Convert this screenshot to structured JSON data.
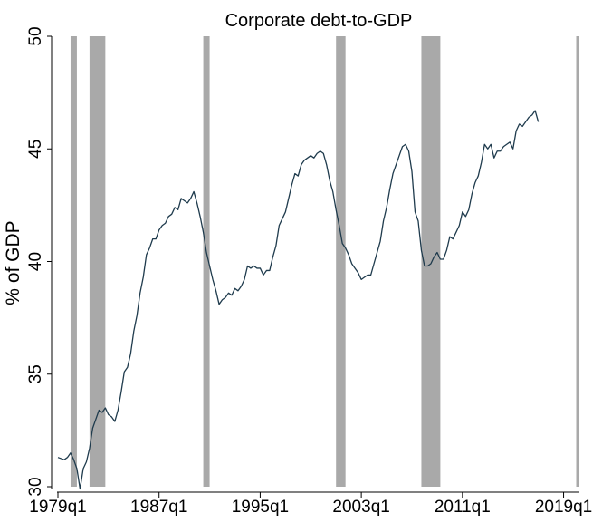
{
  "chart_data": {
    "type": "line",
    "title": "Corporate debt-to-GDP",
    "xlabel": "",
    "ylabel": "% of GDP",
    "ylim": [
      30,
      50
    ],
    "yticks": [
      30,
      35,
      40,
      45,
      50
    ],
    "xlim": [
      "1979q1",
      "2020q2"
    ],
    "xticks": [
      "1979q1",
      "1987q1",
      "1995q1",
      "2003q1",
      "2011q1",
      "2019q1"
    ],
    "grid": false,
    "legend": "none",
    "line_color": "#1f3b4d",
    "recession_color": "#a9a9a9",
    "recession_shading": [
      {
        "start": "1980q1",
        "end": "1980q3"
      },
      {
        "start": "1981q3",
        "end": "1982q4"
      },
      {
        "start": "1990q3",
        "end": "1991q1"
      },
      {
        "start": "2001q1",
        "end": "2001q4"
      },
      {
        "start": "2007q4",
        "end": "2009q2"
      },
      {
        "start": "2020q1",
        "end": "2020q2"
      }
    ],
    "series": [
      {
        "points": [
          [
            "1979q1",
            31.3
          ],
          [
            "1979q3",
            31.2
          ],
          [
            "1979q4",
            31.3
          ],
          [
            "1980q1",
            31.5
          ],
          [
            "1980q2",
            31.2
          ],
          [
            "1980q3",
            30.8
          ],
          [
            "1980q4",
            29.9
          ],
          [
            "1981q1",
            30.8
          ],
          [
            "1981q2",
            31.1
          ],
          [
            "1981q3",
            31.7
          ],
          [
            "1981q4",
            32.6
          ],
          [
            "1982q1",
            33.0
          ],
          [
            "1982q2",
            33.4
          ],
          [
            "1982q3",
            33.3
          ],
          [
            "1982q4",
            33.5
          ],
          [
            "1983q1",
            33.2
          ],
          [
            "1983q2",
            33.1
          ],
          [
            "1983q3",
            32.9
          ],
          [
            "1983q4",
            33.4
          ],
          [
            "1984q1",
            34.2
          ],
          [
            "1984q2",
            35.1
          ],
          [
            "1984q3",
            35.3
          ],
          [
            "1984q4",
            35.9
          ],
          [
            "1985q1",
            36.9
          ],
          [
            "1985q2",
            37.6
          ],
          [
            "1985q3",
            38.6
          ],
          [
            "1985q4",
            39.3
          ],
          [
            "1986q1",
            40.3
          ],
          [
            "1986q2",
            40.6
          ],
          [
            "1986q3",
            41.0
          ],
          [
            "1986q4",
            41.0
          ],
          [
            "1987q1",
            41.4
          ],
          [
            "1987q2",
            41.6
          ],
          [
            "1987q3",
            41.7
          ],
          [
            "1987q4",
            42.0
          ],
          [
            "1988q1",
            42.1
          ],
          [
            "1988q2",
            42.4
          ],
          [
            "1988q3",
            42.3
          ],
          [
            "1988q4",
            42.8
          ],
          [
            "1989q1",
            42.7
          ],
          [
            "1989q2",
            42.6
          ],
          [
            "1989q3",
            42.8
          ],
          [
            "1989q4",
            43.1
          ],
          [
            "1990q1",
            42.6
          ],
          [
            "1990q2",
            42.0
          ],
          [
            "1990q3",
            41.3
          ],
          [
            "1990q4",
            40.4
          ],
          [
            "1991q1",
            39.8
          ],
          [
            "1991q2",
            39.2
          ],
          [
            "1991q3",
            38.7
          ],
          [
            "1991q4",
            38.1
          ],
          [
            "1992q1",
            38.3
          ],
          [
            "1992q2",
            38.4
          ],
          [
            "1992q3",
            38.6
          ],
          [
            "1992q4",
            38.5
          ],
          [
            "1993q1",
            38.8
          ],
          [
            "1993q2",
            38.7
          ],
          [
            "1993q3",
            38.9
          ],
          [
            "1993q4",
            39.2
          ],
          [
            "1994q1",
            39.8
          ],
          [
            "1994q2",
            39.7
          ],
          [
            "1994q3",
            39.8
          ],
          [
            "1994q4",
            39.7
          ],
          [
            "1995q1",
            39.7
          ],
          [
            "1995q2",
            39.4
          ],
          [
            "1995q3",
            39.6
          ],
          [
            "1995q4",
            39.6
          ],
          [
            "1996q1",
            40.2
          ],
          [
            "1996q2",
            40.7
          ],
          [
            "1996q3",
            41.6
          ],
          [
            "1996q4",
            41.9
          ],
          [
            "1997q1",
            42.2
          ],
          [
            "1997q2",
            42.8
          ],
          [
            "1997q3",
            43.4
          ],
          [
            "1997q4",
            43.9
          ],
          [
            "1998q1",
            43.8
          ],
          [
            "1998q2",
            44.3
          ],
          [
            "1998q3",
            44.5
          ],
          [
            "1998q4",
            44.6
          ],
          [
            "1999q1",
            44.7
          ],
          [
            "1999q2",
            44.6
          ],
          [
            "1999q3",
            44.8
          ],
          [
            "1999q4",
            44.9
          ],
          [
            "2000q1",
            44.8
          ],
          [
            "2000q2",
            44.3
          ],
          [
            "2000q3",
            43.6
          ],
          [
            "2000q4",
            43.1
          ],
          [
            "2001q1",
            42.3
          ],
          [
            "2001q2",
            41.6
          ],
          [
            "2001q3",
            40.8
          ],
          [
            "2001q4",
            40.6
          ],
          [
            "2002q1",
            40.3
          ],
          [
            "2002q2",
            39.9
          ],
          [
            "2002q3",
            39.7
          ],
          [
            "2002q4",
            39.5
          ],
          [
            "2003q1",
            39.2
          ],
          [
            "2003q2",
            39.3
          ],
          [
            "2003q3",
            39.4
          ],
          [
            "2003q4",
            39.4
          ],
          [
            "2004q1",
            39.9
          ],
          [
            "2004q2",
            40.4
          ],
          [
            "2004q3",
            40.9
          ],
          [
            "2004q4",
            41.8
          ],
          [
            "2005q1",
            42.4
          ],
          [
            "2005q2",
            43.2
          ],
          [
            "2005q3",
            43.9
          ],
          [
            "2005q4",
            44.3
          ],
          [
            "2006q1",
            44.7
          ],
          [
            "2006q2",
            45.1
          ],
          [
            "2006q3",
            45.2
          ],
          [
            "2006q4",
            44.9
          ],
          [
            "2007q1",
            44.0
          ],
          [
            "2007q2",
            42.2
          ],
          [
            "2007q3",
            41.8
          ],
          [
            "2007q4",
            40.5
          ],
          [
            "2008q1",
            39.8
          ],
          [
            "2008q2",
            39.8
          ],
          [
            "2008q3",
            39.9
          ],
          [
            "2008q4",
            40.2
          ],
          [
            "2009q1",
            40.4
          ],
          [
            "2009q2",
            40.1
          ],
          [
            "2009q3",
            40.1
          ],
          [
            "2009q4",
            40.5
          ],
          [
            "2010q1",
            41.1
          ],
          [
            "2010q2",
            41.0
          ],
          [
            "2010q3",
            41.3
          ],
          [
            "2010q4",
            41.6
          ],
          [
            "2011q1",
            42.2
          ],
          [
            "2011q2",
            42.0
          ],
          [
            "2011q3",
            42.3
          ],
          [
            "2011q4",
            43.0
          ],
          [
            "2012q1",
            43.5
          ],
          [
            "2012q2",
            43.8
          ],
          [
            "2012q3",
            44.4
          ],
          [
            "2012q4",
            45.2
          ],
          [
            "2013q1",
            45.0
          ],
          [
            "2013q2",
            45.2
          ],
          [
            "2013q3",
            44.6
          ],
          [
            "2013q4",
            44.9
          ],
          [
            "2014q1",
            44.9
          ],
          [
            "2014q2",
            45.1
          ],
          [
            "2014q3",
            45.2
          ],
          [
            "2014q4",
            45.3
          ],
          [
            "2015q1",
            45.0
          ],
          [
            "2015q2",
            45.8
          ],
          [
            "2015q3",
            46.1
          ],
          [
            "2015q4",
            46.0
          ],
          [
            "2016q1",
            46.2
          ],
          [
            "2016q2",
            46.4
          ],
          [
            "2016q3",
            46.5
          ],
          [
            "2016q4",
            46.7
          ],
          [
            "2017q1",
            46.2
          ]
        ]
      }
    ]
  }
}
